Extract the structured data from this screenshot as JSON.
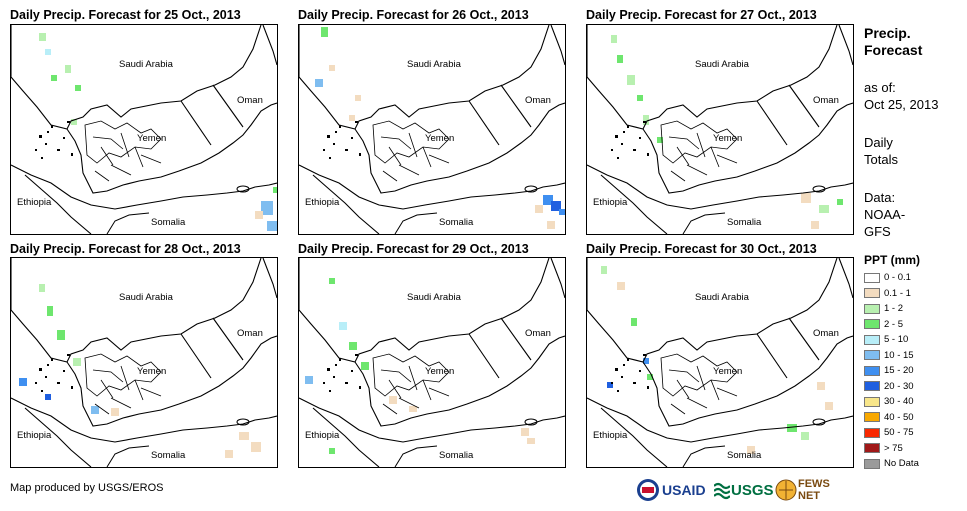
{
  "panels": [
    {
      "title": "Daily Precip. Forecast for 25 Oct., 2013",
      "day": "25"
    },
    {
      "title": "Daily Precip. Forecast for 26 Oct., 2013",
      "day": "26"
    },
    {
      "title": "Daily Precip. Forecast for 27 Oct., 2013",
      "day": "27"
    },
    {
      "title": "Daily Precip. Forecast for 28 Oct., 2013",
      "day": "28"
    },
    {
      "title": "Daily Precip. Forecast for 29 Oct., 2013",
      "day": "29"
    },
    {
      "title": "Daily Precip. Forecast for 30 Oct., 2013",
      "day": "30"
    }
  ],
  "map_labels": {
    "saudi": "Saudi Arabia",
    "oman": "Oman",
    "yemen": "Yemen",
    "ethiopia": "Ethiopia",
    "somalia": "Somalia"
  },
  "sidebar": {
    "title_line1": "Precip.",
    "title_line2": "Forecast",
    "asof_line1": "as of:",
    "asof_line2": "Oct 25, 2013",
    "daily_line1": "Daily",
    "daily_line2": "Totals",
    "data_line1": "Data:",
    "data_line2": "NOAA-",
    "data_line3": "GFS"
  },
  "legend": {
    "title": "PPT (mm)",
    "items": [
      {
        "label": "0 - 0.1",
        "color": "#ffffff"
      },
      {
        "label": "0.1 - 1",
        "color": "#f3dcc0"
      },
      {
        "label": "1 - 2",
        "color": "#b8f0b0"
      },
      {
        "label": "2 - 5",
        "color": "#6ee66e"
      },
      {
        "label": "5 - 10",
        "color": "#b8eef8"
      },
      {
        "label": "10 - 15",
        "color": "#7fbdf0"
      },
      {
        "label": "15 - 20",
        "color": "#3f8ff0"
      },
      {
        "label": "20 - 30",
        "color": "#1f5fe0"
      },
      {
        "label": "30 - 40",
        "color": "#f8e68a"
      },
      {
        "label": "40 - 50",
        "color": "#f8a800"
      },
      {
        "label": "50 - 75",
        "color": "#f82800"
      },
      {
        "label": "> 75",
        "color": "#a01818"
      },
      {
        "label": "No Data",
        "color": "#9a9a9a"
      }
    ]
  },
  "footer": {
    "credit": "Map produced by USGS/EROS",
    "logo_usaid": "USAID",
    "logo_usgs": "USGS",
    "logo_fews": "FEWS NET"
  }
}
